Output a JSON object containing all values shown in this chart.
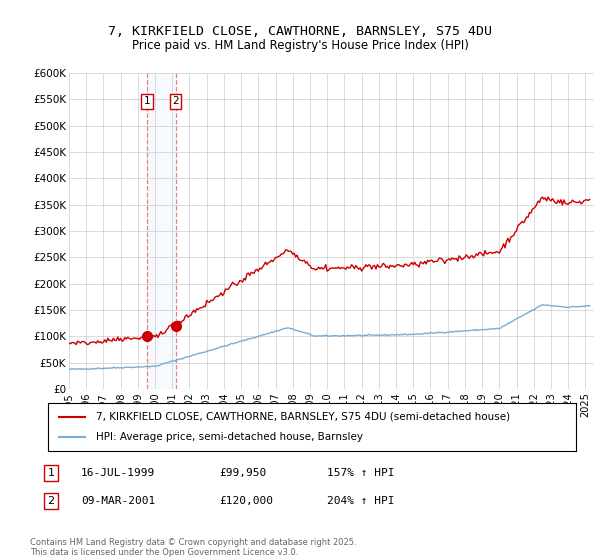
{
  "title_line1": "7, KIRKFIELD CLOSE, CAWTHORNE, BARNSLEY, S75 4DU",
  "title_line2": "Price paid vs. HM Land Registry's House Price Index (HPI)",
  "ylabel_ticks": [
    "£0",
    "£50K",
    "£100K",
    "£150K",
    "£200K",
    "£250K",
    "£300K",
    "£350K",
    "£400K",
    "£450K",
    "£500K",
    "£550K",
    "£600K"
  ],
  "ytick_values": [
    0,
    50000,
    100000,
    150000,
    200000,
    250000,
    300000,
    350000,
    400000,
    450000,
    500000,
    550000,
    600000
  ],
  "hpi_color": "#7aadd4",
  "price_color": "#cc0000",
  "vline_color": "#e88080",
  "shade_color": "#ddeeff",
  "marker_color": "#cc0000",
  "transaction1": {
    "date_num": 1999.54,
    "price": 99950,
    "label": "1",
    "date_str": "16-JUL-1999",
    "price_str": "£99,950",
    "hpi_str": "157% ↑ HPI"
  },
  "transaction2": {
    "date_num": 2001.19,
    "price": 120000,
    "label": "2",
    "date_str": "09-MAR-2001",
    "price_str": "£120,000",
    "hpi_str": "204% ↑ HPI"
  },
  "legend_line1": "7, KIRKFIELD CLOSE, CAWTHORNE, BARNSLEY, S75 4DU (semi-detached house)",
  "legend_line2": "HPI: Average price, semi-detached house, Barnsley",
  "footer": "Contains HM Land Registry data © Crown copyright and database right 2025.\nThis data is licensed under the Open Government Licence v3.0.",
  "xmin": 1995.0,
  "xmax": 2025.5,
  "ymin": 0,
  "ymax": 600000
}
